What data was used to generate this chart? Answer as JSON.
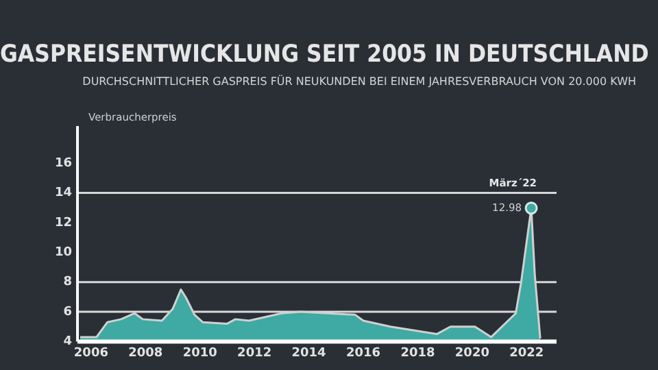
{
  "chart_data": {
    "type": "area",
    "title": "GASPREISENTWICKLUNG SEIT 2005 IN DEUTSCHLAND",
    "subtitle": "DURCHSCHNITTLICHER GASPREIS FÜR NEUKUNDEN BEI EINEM JAHRESVERBRAUCH VON 20.000 KWH",
    "ylabel": "Verbraucherpreis",
    "x": [
      2005.6,
      2006.2,
      2006.6,
      2007.1,
      2007.6,
      2007.9,
      2008.6,
      2009.0,
      2009.3,
      2009.5,
      2009.8,
      2010.1,
      2011.0,
      2011.3,
      2011.8,
      2013.0,
      2013.7,
      2015.7,
      2016.0,
      2017.0,
      2018.7,
      2019.2,
      2020.1,
      2020.7,
      2021.6,
      2021.8,
      2022.17,
      2022.3,
      2022.5
    ],
    "series": [
      {
        "color": "#3fa9a3",
        "values": [
          4.3,
          4.3,
          5.3,
          5.5,
          5.9,
          5.5,
          5.4,
          6.2,
          7.5,
          6.9,
          5.8,
          5.3,
          5.2,
          5.5,
          5.4,
          5.9,
          6.0,
          5.8,
          5.4,
          5.0,
          4.5,
          5.0,
          5.0,
          4.3,
          5.9,
          8.0,
          12.98,
          8.5,
          4.2
        ],
        "value_labels": [
          null,
          null,
          null,
          null,
          null,
          null,
          null,
          null,
          null,
          null,
          null,
          null,
          null,
          null,
          null,
          null,
          null,
          null,
          null,
          null,
          null,
          null,
          null,
          null,
          null,
          null,
          "12.98",
          null,
          null
        ]
      }
    ],
    "annotations": [
      {
        "text": "März´22",
        "x": 2022.17,
        "y": 12.98
      }
    ],
    "xlim": [
      2005.5,
      2023.1
    ],
    "xticks": [
      2006,
      2008,
      2010,
      2012,
      2014,
      2016,
      2018,
      2020,
      2022
    ],
    "ylim": [
      4,
      18.5
    ],
    "yticks": [
      4,
      6,
      8,
      10,
      12,
      14,
      16
    ],
    "ref_lines": [
      {
        "axis": "y",
        "value": 6,
        "color": "#d8d8d8"
      },
      {
        "axis": "y",
        "value": 8,
        "color": "#d8d8d8"
      },
      {
        "axis": "y",
        "value": 14,
        "color": "#d8d8d8"
      }
    ],
    "grid": false,
    "legend": false
  }
}
